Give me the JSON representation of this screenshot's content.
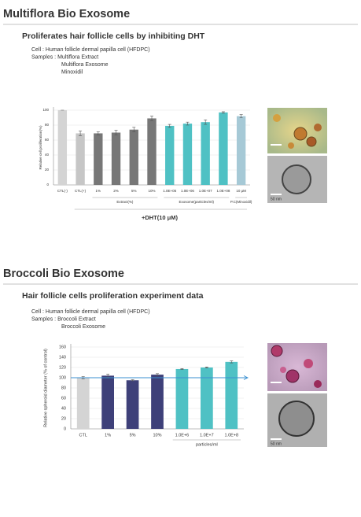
{
  "sections": [
    {
      "title": "Multiflora Bio Exosome",
      "subtitle": "Proliferates hair follicle cells by inhibiting DHT",
      "info": [
        "Cell : Human follicle dermal papilla cell (HFDPC)",
        "Samples : Multiflora Extract",
        "Multiflora Exosome",
        "Minoxidil"
      ],
      "chart_data": {
        "type": "bar",
        "ylabel": "Relative cell proliferation(%)",
        "categories": [
          "CTL(-)",
          "CTL(+)",
          "1%",
          "2%",
          "5%",
          "10%",
          "1.0E+05",
          "1.0E+06",
          "1.0E+07",
          "1.0E+08",
          "10 μM"
        ],
        "values": [
          100,
          69,
          69,
          70,
          74,
          89,
          79,
          82,
          84,
          97,
          92
        ],
        "errors": [
          0,
          3,
          2,
          3,
          3,
          3,
          2,
          2,
          3,
          1,
          2
        ],
        "colors": [
          "#d4d4d4",
          "#c6c6c6",
          "#777777",
          "#777777",
          "#777777",
          "#777777",
          "#4fc1c4",
          "#4fc1c4",
          "#4fc1c4",
          "#4fc1c4",
          "#a6c9d6"
        ],
        "group_labels": [
          "Extract(%)",
          "Exosome(particles/ml)",
          "P.C(Minoxidil)"
        ],
        "footer": "+DHT(10 μM)",
        "ylim": [
          0,
          100
        ],
        "yticks": [
          0,
          20,
          40,
          60,
          80,
          100
        ]
      },
      "images": [
        "",
        "50 nm"
      ]
    },
    {
      "title": "Broccoli Bio Exosome",
      "subtitle": "Hair follicle cells proliferation experiment data",
      "info": [
        "Cell : Human follicle dermal papilla cell (HFDPC)",
        "Samples : Broccoli Extract",
        "Broccoli Exosome"
      ],
      "chart_data": {
        "type": "bar",
        "ylabel": "Relative spheroid diameter (% of control)",
        "categories": [
          "CTL",
          "1%",
          "5%",
          "10%",
          "1.0E+6",
          "1.0E+7",
          "1.0E+8"
        ],
        "values": [
          100,
          104,
          95,
          106,
          117,
          120,
          131
        ],
        "errors": [
          2,
          3,
          1,
          2,
          1,
          1,
          2
        ],
        "colors": [
          "#d4d4d4",
          "#3e4079",
          "#3e4079",
          "#3e4079",
          "#4fc1c4",
          "#4fc1c4",
          "#4fc1c4"
        ],
        "group_labels": [
          "particles/ml"
        ],
        "reference_line": 100,
        "reference_color": "#3a8fd0",
        "ylim": [
          0,
          160
        ],
        "yticks": [
          0,
          20,
          40,
          60,
          80,
          100,
          120,
          140,
          160
        ]
      },
      "images": [
        "",
        "50 nm"
      ]
    }
  ]
}
